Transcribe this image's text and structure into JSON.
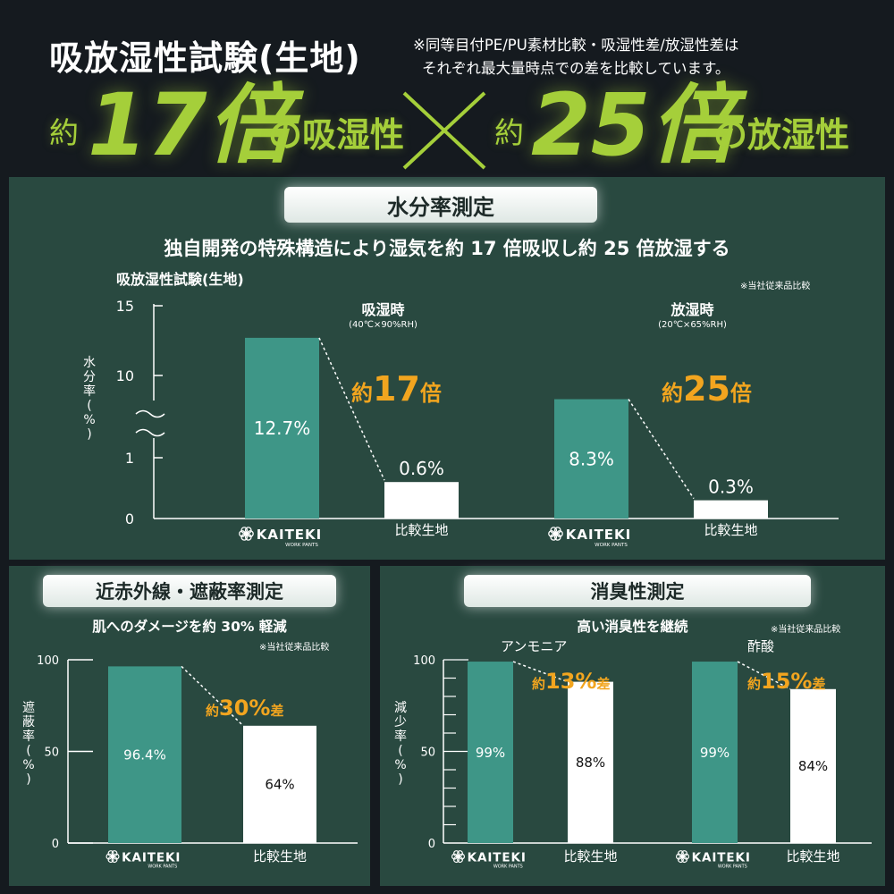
{
  "header": {
    "title": "吸放湿性試験(生地)",
    "note_line1": "※同等目付PE/PU素材比較・吸湿性差/放湿性差は",
    "note_line2": "それぞれ最大量時点での差を比較しています。",
    "hero_left_prefix": "約",
    "hero_left_value": "17倍",
    "hero_left_suffix": "の吸湿性",
    "hero_cross": "×",
    "hero_right_prefix": "約",
    "hero_right_value": "25倍",
    "hero_right_suffix": "の放湿性"
  },
  "moisture": {
    "pill": "水分率測定",
    "subtitle": "独自開発の特殊構造により湿気を約 17 倍吸収し約 25 倍放湿する",
    "chart_title": "吸放湿性試験(生地)",
    "note": "※当社従来品比較",
    "ylabel": "水分率(%)"
  },
  "ir": {
    "pill": "近赤外線・遮蔽率測定",
    "subtitle": "肌へのダメージを約 30% 軽減",
    "note": "※当社従来品比較",
    "ylabel": "遮蔽率(%)"
  },
  "odor": {
    "pill": "消臭性測定",
    "subtitle": "高い消臭性を継続",
    "note": "※当社従来品比較",
    "ylabel": "減少率(%)"
  },
  "brand": {
    "name": "KAITEKI",
    "tagline": "WORK PANTS"
  },
  "chart_data": [
    {
      "type": "bar",
      "title": "吸放湿性試験(生地)",
      "ylabel": "水分率(%)",
      "yticks": [
        "0",
        "1",
        "10",
        "15"
      ],
      "axis_break": true,
      "groups": [
        {
          "label": "吸湿時",
          "condition": "(40℃×90%RH)",
          "ratio_prefix": "約",
          "ratio": "17",
          "ratio_unit": "倍",
          "bars": [
            {
              "label": "KAITEKI",
              "value": 12.7,
              "display": "12.7%",
              "color": "#3e9687"
            },
            {
              "label": "比較生地",
              "value": 0.6,
              "display": "0.6%",
              "color": "#ffffff"
            }
          ]
        },
        {
          "label": "放湿時",
          "condition": "(20℃×65%RH)",
          "ratio_prefix": "約",
          "ratio": "25",
          "ratio_unit": "倍",
          "bars": [
            {
              "label": "KAITEKI",
              "value": 8.3,
              "display": "8.3%",
              "color": "#3e9687"
            },
            {
              "label": "比較生地",
              "value": 0.3,
              "display": "0.3%",
              "color": "#ffffff"
            }
          ]
        }
      ]
    },
    {
      "type": "bar",
      "ylabel": "遮蔽率(%)",
      "ylim": [
        0,
        100
      ],
      "yticks": [
        0,
        50,
        100
      ],
      "diff_prefix": "約",
      "diff": "30%",
      "diff_suffix": "差",
      "bars": [
        {
          "label": "KAITEKI",
          "value": 96.4,
          "display": "96.4%",
          "color": "#3e9687"
        },
        {
          "label": "比較生地",
          "value": 64,
          "display": "64%",
          "color": "#ffffff"
        }
      ]
    },
    {
      "type": "bar",
      "ylabel": "減少率(%)",
      "ylim": [
        0,
        100
      ],
      "yticks": [
        0,
        50,
        100
      ],
      "groups": [
        {
          "label": "アンモニア",
          "diff_prefix": "約",
          "diff": "13%",
          "diff_suffix": "差",
          "bars": [
            {
              "label": "KAITEKI",
              "value": 99,
              "display": "99%",
              "color": "#3e9687"
            },
            {
              "label": "比較生地",
              "value": 88,
              "display": "88%",
              "color": "#ffffff"
            }
          ]
        },
        {
          "label": "酢酸",
          "diff_prefix": "約",
          "diff": "15%",
          "diff_suffix": "差",
          "bars": [
            {
              "label": "KAITEKI",
              "value": 99,
              "display": "99%",
              "color": "#3e9687"
            },
            {
              "label": "比較生地",
              "value": 84,
              "display": "84%",
              "color": "#ffffff"
            }
          ]
        }
      ]
    }
  ]
}
